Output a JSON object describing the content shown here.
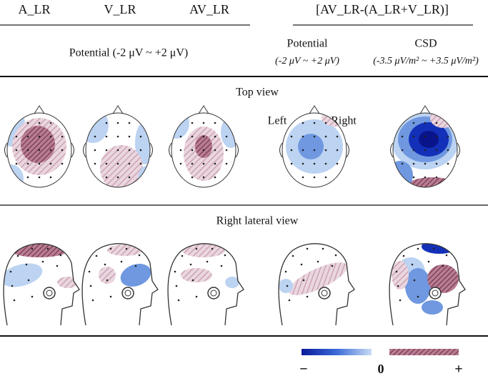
{
  "header": {
    "columns": [
      "A_LR",
      "V_LR",
      "AV_LR"
    ],
    "difference": "[AV_LR-(A_LR+V_LR)]",
    "potential_range": "Potential (-2 μV ~ +2 μV)",
    "difference_potential": {
      "label": "Potential",
      "range": "(-2 μV ~ +2 μV)"
    },
    "csd": {
      "label": "CSD",
      "range": "(-3.5 μV/m² ~ +3.5 μV/m²)"
    }
  },
  "sections": {
    "top": {
      "title": "Top view",
      "left": "Left",
      "right": "Right"
    },
    "lateral": {
      "title": "Right lateral view"
    }
  },
  "colorbar": {
    "negative": "−",
    "zero": "0",
    "positive": "+"
  }
}
